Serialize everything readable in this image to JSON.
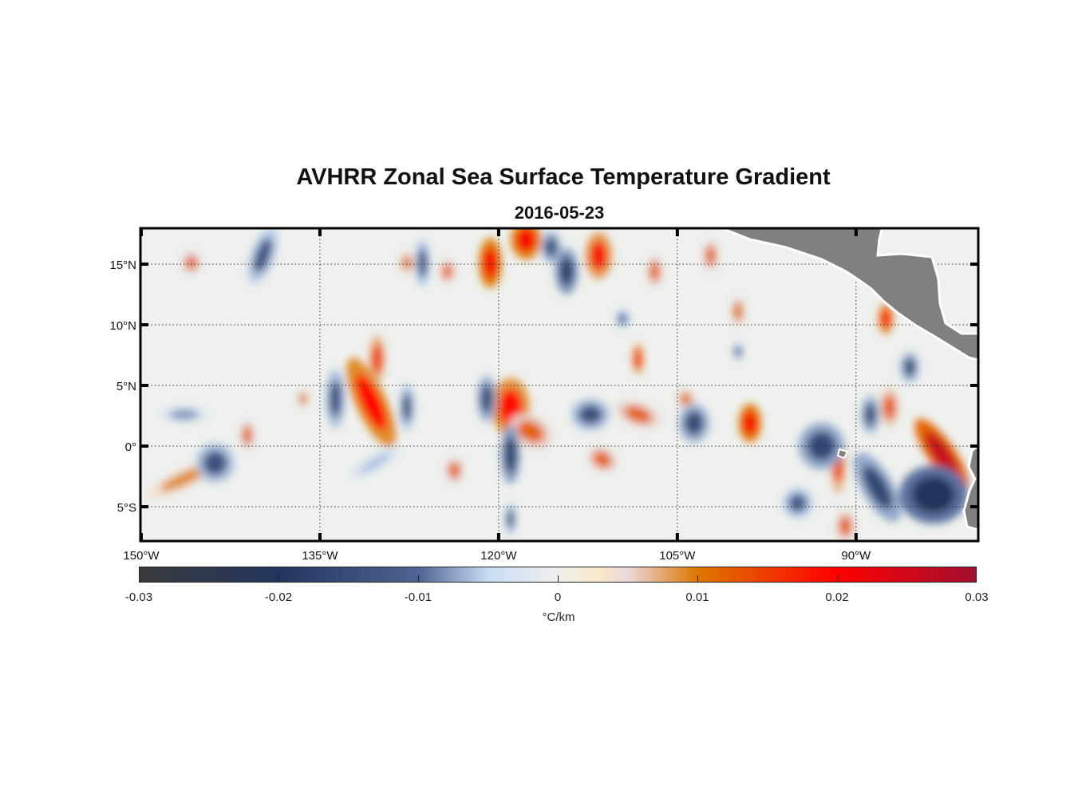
{
  "title": "AVHRR Zonal Sea Surface Temperature Gradient",
  "subtitle": "2016-05-23",
  "chart_data": {
    "type": "heatmap",
    "title": "AVHRR Zonal Sea Surface Temperature Gradient",
    "subtitle": "2016-05-23",
    "lon_range": [
      -150,
      -80
    ],
    "lat_range": [
      -8,
      18
    ],
    "grid": true,
    "x_ticks": [
      {
        "value": -150,
        "label": "150°W"
      },
      {
        "value": -135,
        "label": "135°W"
      },
      {
        "value": -120,
        "label": "120°W"
      },
      {
        "value": -105,
        "label": "105°W"
      },
      {
        "value": -90,
        "label": "90°W"
      }
    ],
    "y_ticks": [
      {
        "value": 15,
        "label": "15°N"
      },
      {
        "value": 10,
        "label": "10°N"
      },
      {
        "value": 5,
        "label": "5°N"
      },
      {
        "value": 0,
        "label": "0°"
      },
      {
        "value": -5,
        "label": "5°S"
      }
    ],
    "colorbar": {
      "label": "°C/km",
      "range": [
        -0.03,
        0.03
      ],
      "ticks": [
        "-0.03",
        "-0.02",
        "-0.01",
        "0",
        "0.01",
        "0.02",
        "0.03"
      ],
      "colormap": [
        [
          -0.03,
          "#3a3b3d"
        ],
        [
          -0.02,
          "#22355e"
        ],
        [
          -0.01,
          "#4d6494"
        ],
        [
          -0.005,
          "#c9dcf4"
        ],
        [
          0,
          "#eef1ee"
        ],
        [
          0.003,
          "#fbe8c8"
        ],
        [
          0.005,
          "#ead9dc"
        ],
        [
          0.01,
          "#dd7800"
        ],
        [
          0.02,
          "#ff0000"
        ],
        [
          0.03,
          "#a0102f"
        ]
      ]
    },
    "land_color": "#808080",
    "features": [
      [
        -130.7,
        3.6,
        0.8,
        2.5,
        -25,
        0.02
      ],
      [
        -130.2,
        7.2,
        0.4,
        1.2,
        0,
        0.016
      ],
      [
        -119.0,
        3.2,
        1.0,
        1.5,
        0,
        0.019
      ],
      [
        -117.3,
        1.2,
        1.2,
        0.8,
        30,
        0.012
      ],
      [
        -120.7,
        15.1,
        0.6,
        1.3,
        0,
        0.021
      ],
      [
        -117.7,
        17.0,
        0.8,
        1.0,
        0,
        0.021
      ],
      [
        -111.6,
        15.7,
        0.7,
        1.2,
        0,
        0.018
      ],
      [
        -108.3,
        7.2,
        0.3,
        0.8,
        0,
        0.017
      ],
      [
        -108.3,
        2.6,
        1.2,
        0.6,
        20,
        0.012
      ],
      [
        -98.9,
        1.9,
        0.6,
        1.0,
        0,
        0.021
      ],
      [
        -82.8,
        -0.7,
        0.7,
        2.2,
        -35,
        0.026
      ],
      [
        -91.5,
        -1.4,
        0.4,
        1.6,
        0,
        0.015
      ],
      [
        -111.3,
        -1.1,
        0.8,
        0.6,
        30,
        0.012
      ],
      [
        -123.7,
        -2.0,
        0.5,
        0.7,
        0,
        0.011
      ],
      [
        -146.4,
        -2.7,
        2.2,
        0.5,
        -25,
        0.009
      ],
      [
        -141.1,
        0.9,
        0.4,
        0.8,
        0,
        0.011
      ],
      [
        -145.8,
        15.1,
        0.5,
        0.6,
        0,
        0.011
      ],
      [
        -140.1,
        15.1,
        0.6,
        0.7,
        0,
        0.011
      ],
      [
        -104.3,
        3.9,
        0.5,
        0.5,
        0,
        0.01
      ],
      [
        -102.2,
        15.7,
        0.4,
        0.8,
        0,
        0.012
      ],
      [
        -87.5,
        10.5,
        0.4,
        0.8,
        0,
        0.019
      ],
      [
        -87.2,
        3.2,
        0.5,
        1.0,
        0,
        0.013
      ],
      [
        -90.9,
        -6.6,
        0.5,
        0.8,
        0,
        0.012
      ],
      [
        -99.9,
        11.1,
        0.4,
        0.8,
        0,
        0.01
      ],
      [
        -106.9,
        14.4,
        0.4,
        0.8,
        0,
        0.012
      ],
      [
        -124.3,
        14.4,
        0.4,
        0.6,
        0,
        0.012
      ],
      [
        -127.7,
        15.1,
        0.4,
        0.6,
        0,
        0.01
      ],
      [
        -136.4,
        3.9,
        0.3,
        0.5,
        0,
        0.01
      ],
      [
        -139.8,
        15.7,
        0.6,
        1.5,
        20,
        -0.013
      ],
      [
        -143.8,
        -1.4,
        1.0,
        1.0,
        0,
        -0.014
      ],
      [
        -119.0,
        -0.7,
        0.5,
        1.5,
        0,
        -0.017
      ],
      [
        -133.7,
        3.9,
        0.5,
        1.5,
        0,
        -0.014
      ],
      [
        -127.7,
        3.2,
        0.4,
        1.2,
        0,
        -0.013
      ],
      [
        -121.0,
        3.9,
        0.5,
        1.2,
        0,
        -0.015
      ],
      [
        -112.3,
        2.6,
        1.0,
        0.8,
        0,
        -0.014
      ],
      [
        -103.6,
        1.9,
        0.8,
        1.0,
        0,
        -0.015
      ],
      [
        -92.9,
        0.0,
        1.2,
        1.2,
        0,
        -0.016
      ],
      [
        -83.5,
        -4.0,
        1.8,
        1.5,
        0,
        -0.021
      ],
      [
        -88.2,
        -3.4,
        0.8,
        2.0,
        -30,
        -0.016
      ],
      [
        -94.9,
        -4.7,
        0.8,
        0.8,
        0,
        -0.012
      ],
      [
        -88.8,
        2.6,
        0.5,
        1.0,
        0,
        -0.014
      ],
      [
        -114.3,
        14.4,
        0.6,
        1.2,
        0,
        -0.017
      ],
      [
        -126.4,
        15.1,
        0.4,
        1.2,
        0,
        -0.013
      ],
      [
        -115.6,
        16.4,
        0.5,
        0.8,
        0,
        -0.015
      ],
      [
        -119.0,
        -6.0,
        0.3,
        0.8,
        0,
        -0.013
      ],
      [
        -109.6,
        10.5,
        0.4,
        0.5,
        0,
        -0.01
      ],
      [
        -99.9,
        7.8,
        0.3,
        0.5,
        0,
        -0.01
      ],
      [
        -85.5,
        6.5,
        0.5,
        0.8,
        0,
        -0.014
      ],
      [
        -130.4,
        -1.4,
        1.5,
        0.4,
        -30,
        -0.006
      ],
      [
        -146.4,
        2.6,
        1.2,
        0.4,
        0,
        -0.008
      ]
    ]
  }
}
